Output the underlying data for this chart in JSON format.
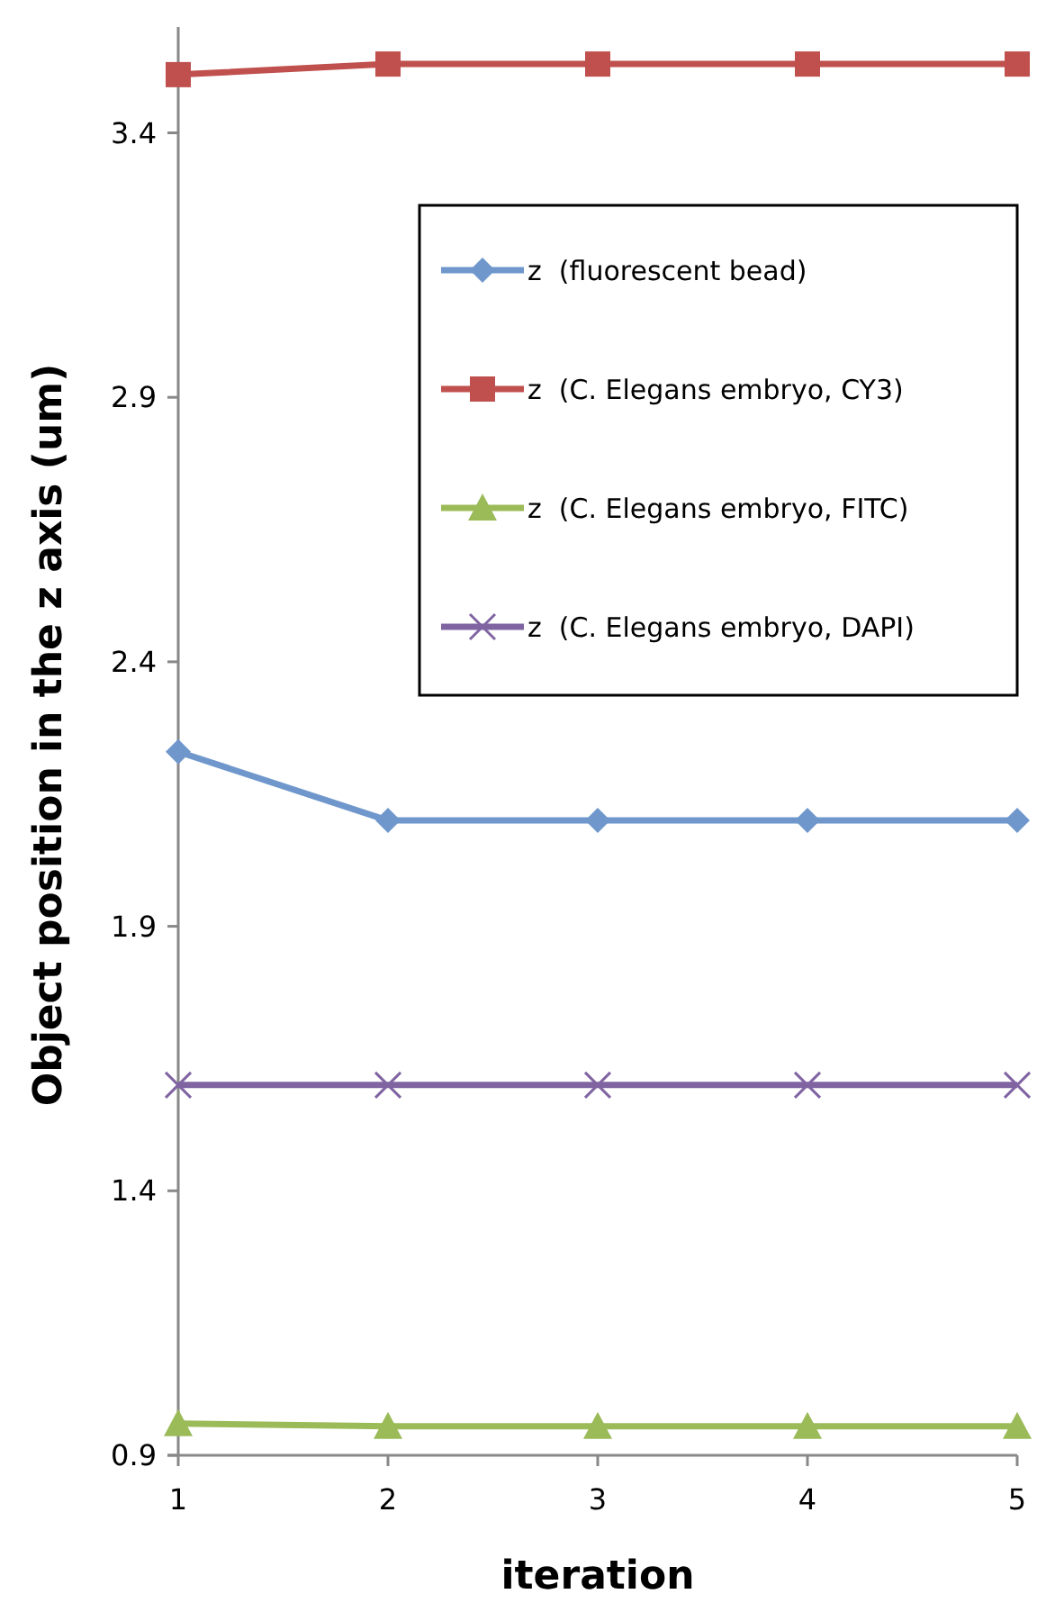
{
  "chart_data": {
    "type": "line",
    "xlabel": "iteration",
    "ylabel": "Object position in the z axis (um)",
    "categories": [
      "1",
      "2",
      "3",
      "4",
      "5"
    ],
    "ylim": [
      0.9,
      3.6
    ],
    "yticks": [
      0.9,
      1.4,
      1.9,
      2.4,
      2.9,
      3.4
    ],
    "grid": false,
    "legend": "top right",
    "line_style": "solid",
    "series": [
      {
        "name": "z  (fluorescent bead)",
        "color": "#6f97cc",
        "marker": "diamond",
        "values": [
          2.23,
          2.1,
          2.1,
          2.1,
          2.1
        ]
      },
      {
        "name": "z  (C. Elegans embryo, CY3)",
        "color": "#c0504d",
        "marker": "square",
        "values": [
          3.51,
          3.53,
          3.53,
          3.53,
          3.53
        ]
      },
      {
        "name": "z  (C. Elegans embryo, FITC)",
        "color": "#9bbb59",
        "marker": "triangle",
        "values": [
          0.96,
          0.955,
          0.955,
          0.955,
          0.955
        ]
      },
      {
        "name": "z  (C. Elegans embryo, DAPI)",
        "color": "#8064a2",
        "marker": "cross",
        "values": [
          1.6,
          1.6,
          1.6,
          1.6,
          1.6
        ]
      }
    ]
  }
}
